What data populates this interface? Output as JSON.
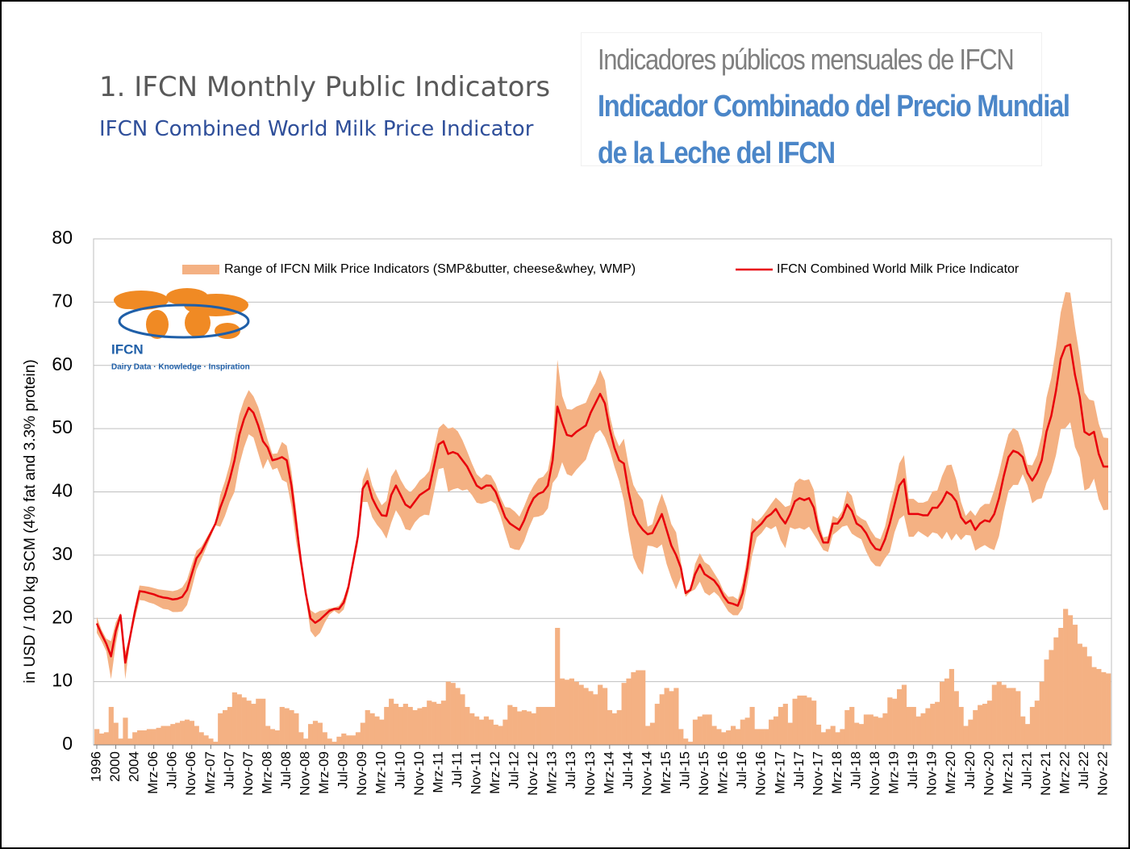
{
  "header": {
    "title": "1. IFCN Monthly Public Indicators",
    "subtitle": "IFCN Combined World Milk Price Indicator"
  },
  "spanish_header": {
    "title": "Indicadores públicos mensuales de IFCN",
    "subtitle_line1": "Indicador Combinado del Precio Mundial",
    "subtitle_line2": "de la Leche del IFCN"
  },
  "logo": {
    "name": "IFCN",
    "tagline": "Dairy Data · Knowledge · Inspiration"
  },
  "chart_data": {
    "type": "band_line",
    "y_label": "in USD / 100 kg SCM (4% fat and 3.3% protein)",
    "ylim": [
      0,
      80
    ],
    "yticks": [
      0,
      10,
      20,
      30,
      40,
      50,
      60,
      70,
      80
    ],
    "grid": true,
    "legend": "top",
    "categories": [
      "1996",
      null,
      null,
      null,
      "2000",
      null,
      null,
      null,
      "2004",
      null,
      null,
      null,
      "Mrz-06",
      null,
      null,
      null,
      "Jul-06",
      null,
      null,
      null,
      "Nov-06",
      null,
      null,
      null,
      "Mrz-07",
      null,
      null,
      null,
      "Jul-07",
      null,
      null,
      null,
      "Nov-07",
      null,
      null,
      null,
      "Mrz-08",
      null,
      null,
      null,
      "Jul-08",
      null,
      null,
      null,
      "Nov-08",
      null,
      null,
      null,
      "Mrz-09",
      null,
      null,
      null,
      "Jul-09",
      null,
      null,
      null,
      "Nov-09",
      null,
      null,
      null,
      "Mrz-10",
      null,
      null,
      null,
      "Jul-10",
      null,
      null,
      null,
      "Nov-10",
      null,
      null,
      null,
      "Mrz-11",
      null,
      null,
      null,
      "Jul-11",
      null,
      null,
      null,
      "Nov-11",
      null,
      null,
      null,
      "Mrz-12",
      null,
      null,
      null,
      "Jul-12",
      null,
      null,
      null,
      "Nov-12",
      null,
      null,
      null,
      "Mrz-13",
      null,
      null,
      null,
      "Jul-13",
      null,
      null,
      null,
      "Nov-13",
      null,
      null,
      null,
      "Mrz-14",
      null,
      null,
      null,
      "Jul-14",
      null,
      null,
      null,
      "Nov-14",
      null,
      null,
      null,
      "Mrz-15",
      null,
      null,
      null,
      "Jul-15",
      null,
      null,
      null,
      "Nov-15",
      null,
      null,
      null,
      "Mrz-16",
      null,
      null,
      null,
      "Jul-16",
      null,
      null,
      null,
      "Nov-16",
      null,
      null,
      null,
      "Mrz-17",
      null,
      null,
      null,
      "Jul-17",
      null,
      null,
      null,
      "Nov-17",
      null,
      null,
      null,
      "Mrz-18",
      null,
      null,
      null,
      "Jul-18",
      null,
      null,
      null,
      "Nov-18",
      null,
      null,
      null,
      "Mrz-19",
      null,
      null,
      null,
      "Jul-19",
      null,
      null,
      null,
      "Nov-19",
      null,
      null,
      null,
      "Mrz-20",
      null,
      null,
      null,
      "Jul-20",
      null,
      null,
      null,
      "Nov-20",
      null,
      null,
      null,
      "Mrz-21",
      null,
      null,
      null,
      "Jul-21",
      null,
      null,
      null,
      "Nov-21",
      null,
      null,
      null,
      "Mrz-22",
      null,
      null,
      null,
      "Jul-22",
      null,
      null,
      null,
      "Nov-22",
      null
    ],
    "series": [
      {
        "name": "Range of IFCN Milk Price Indicators (SMP&butter, cheese&whey, WMP)",
        "color": "#f4b183",
        "low": [
          17.7,
          16.4,
          14.8,
          10.4,
          15.9,
          19.9,
          10.4,
          16.4,
          19.8,
          22.9,
          22.8,
          22.5,
          22.3,
          21.9,
          21.5,
          21.4,
          21,
          21,
          21.1,
          22.1,
          24.7,
          27.7,
          29.3,
          31.1,
          32.9,
          34.7,
          34.5,
          36.2,
          38.4,
          40,
          44.2,
          47,
          49.1,
          48.6,
          46.1,
          43.6,
          45.2,
          43.5,
          43.8,
          41.9,
          41.5,
          37.7,
          32,
          27.8,
          23.4,
          18,
          17,
          17.7,
          19.3,
          20.6,
          21.2,
          20.7,
          21.4,
          24.1,
          28.1,
          31.8,
          38.4,
          38.4,
          36,
          34.8,
          33.9,
          32.6,
          35.1,
          37.1,
          35.9,
          34.1,
          33.9,
          35.2,
          36,
          36.4,
          36.3,
          39.9,
          43.6,
          43.8,
          40,
          40.4,
          40.6,
          40.2,
          40.4,
          39.5,
          38.3,
          38.1,
          38.3,
          38.6,
          38.1,
          36.2,
          33.6,
          31.2,
          30.9,
          30.8,
          32.2,
          34.3,
          36,
          36.1,
          36.4,
          37.4,
          41.4,
          42.4,
          44.7,
          42.8,
          42.5,
          43.5,
          44.3,
          45.1,
          47.4,
          49.2,
          49.8,
          48.6,
          46.7,
          44,
          41.7,
          38.6,
          33.7,
          29.6,
          27.9,
          26.9,
          31.5,
          31.4,
          31.1,
          31.7,
          28.6,
          26.4,
          24.6,
          26.5,
          23.4,
          24.2,
          24.6,
          25.8,
          24.1,
          23.6,
          24.2,
          23.5,
          22.3,
          21.1,
          20.5,
          20.5,
          21.6,
          25.4,
          29.9,
          32.8,
          33.5,
          34.5,
          34.1,
          34.6,
          32.4,
          31.1,
          34.4,
          34.1,
          34.3,
          34,
          34.5,
          33.3,
          32.1,
          30.8,
          30.5,
          33.2,
          33.8,
          34.5,
          34.7,
          33.4,
          32.9,
          32.5,
          30.6,
          29.1,
          28.3,
          28.2,
          29.5,
          30.5,
          33.6,
          35.7,
          36.3,
          32.9,
          32.9,
          33.8,
          33.3,
          32.8,
          33.6,
          33.4,
          32.5,
          33.7,
          32.3,
          33.4,
          32.4,
          33.2,
          33.1,
          30.7,
          31.2,
          31.6,
          31.1,
          30.8,
          33,
          36.8,
          40.1,
          41.1,
          41.1,
          42.8,
          41,
          38.2,
          38.8,
          39,
          41.4,
          43,
          45.8,
          49.9,
          50.1,
          51,
          47.1,
          45.4,
          40.2,
          40.6,
          42.1,
          38.8,
          37.1,
          37.2
        ],
        "values": [
          2.5,
          1.8,
          2,
          6,
          3.5,
          1,
          4.3,
          1,
          2,
          2.3,
          2.3,
          2.5,
          2.5,
          2.7,
          3,
          3,
          3.3,
          3.5,
          3.8,
          4,
          3.8,
          3,
          2,
          1.5,
          1,
          0.5,
          5,
          5.5,
          6,
          8.3,
          8,
          7.5,
          7,
          6.5,
          7.3,
          7.3,
          3,
          2.5,
          2.3,
          6,
          5.8,
          5.5,
          5,
          2,
          1,
          3.3,
          3.8,
          3.5,
          2,
          1,
          0.5,
          1.3,
          1.8,
          1.5,
          1.5,
          2,
          3.5,
          5.5,
          5,
          4.5,
          4,
          6,
          7.3,
          6.5,
          6,
          6.5,
          6,
          5.5,
          5.8,
          6,
          7,
          6.8,
          6.5,
          7,
          10,
          9.8,
          9,
          8,
          6,
          5,
          4.5,
          4,
          4.5,
          4,
          3.2,
          3,
          4,
          6.3,
          6,
          5.3,
          5.5,
          5.3,
          5,
          6,
          6,
          6,
          6,
          18.5,
          10.5,
          10.3,
          10.5,
          10,
          9.5,
          9,
          8.5,
          8,
          9.5,
          9,
          5.5,
          5,
          5.5,
          9.8,
          10.5,
          11.5,
          11.8,
          11.8,
          3,
          3.5,
          6.5,
          8,
          9,
          8.5,
          9,
          2.5,
          1,
          0.5,
          4,
          4.5,
          4.8,
          4.8,
          3,
          2.5,
          2,
          2.3,
          3,
          2.5,
          4,
          4.3,
          6,
          2.5,
          2.5,
          2.5,
          4,
          4.5,
          6,
          6.5,
          3.5,
          7.3,
          7.8,
          7.8,
          7.5,
          7,
          3.2,
          2,
          2.5,
          3,
          2,
          2.5,
          5.5,
          6,
          3.5,
          3.3,
          4.8,
          4.8,
          4.5,
          4.3,
          5,
          7.5,
          7.3,
          8.8,
          9.5,
          6,
          6,
          4.5,
          5,
          5.8,
          6.5,
          6.8,
          10,
          10.5,
          12,
          8.5,
          6,
          3,
          4,
          5.5,
          6.3,
          6.5,
          7,
          9.5,
          10,
          9.5,
          9,
          9,
          8.5,
          4.5,
          3.3,
          6,
          7,
          10,
          13.5,
          15,
          17,
          18.5,
          21.5,
          20.5,
          19,
          16,
          15.5,
          14,
          12.3,
          12,
          11.5,
          11.3
        ]
      },
      {
        "name": "IFCN Combined World Milk Price Indicator",
        "color": "#e8000b",
        "values": [
          19.2,
          17.5,
          16,
          14,
          18,
          20.5,
          13,
          17,
          21,
          24.3,
          24.2,
          24,
          23.8,
          23.5,
          23.3,
          23.2,
          23,
          23.1,
          23.4,
          24.5,
          27,
          29.5,
          30.5,
          32,
          33.5,
          35,
          37.5,
          39.5,
          42,
          45,
          49,
          51.5,
          53.3,
          52.5,
          50.5,
          48,
          47,
          45,
          45.2,
          45.5,
          45,
          41,
          35,
          29,
          24,
          20,
          19.3,
          19.8,
          20.5,
          21.2,
          21.5,
          21.5,
          22.5,
          25,
          29,
          33,
          40.5,
          41.7,
          39,
          37.5,
          36.3,
          36.2,
          39.5,
          41,
          39.5,
          38,
          37.5,
          38.5,
          39.5,
          40,
          40.5,
          44,
          47.5,
          48,
          46,
          46.3,
          46,
          45,
          44,
          42.5,
          41,
          40.5,
          41,
          41,
          40,
          38,
          36,
          35,
          34.5,
          34,
          35.5,
          37.5,
          39,
          39.7,
          40,
          41,
          45,
          53.5,
          51,
          49,
          48.8,
          49.5,
          50,
          50.5,
          52.5,
          54,
          55.5,
          54,
          50,
          47,
          45,
          44.5,
          40,
          36.5,
          35,
          34,
          33.3,
          33.5,
          35,
          36.5,
          34,
          31.5,
          30,
          28,
          24,
          24.5,
          27,
          28.5,
          27,
          26.5,
          26,
          25,
          23.5,
          22.5,
          22.3,
          22,
          24,
          28,
          33.5,
          34.3,
          35,
          36,
          36.5,
          37.3,
          36,
          35,
          36.5,
          38.5,
          39,
          38.7,
          39,
          37.5,
          34,
          32,
          32,
          35,
          35,
          36,
          38,
          37,
          35,
          34.5,
          33.5,
          32,
          31,
          30.8,
          32.5,
          35,
          38,
          41,
          42,
          36.5,
          36.5,
          36.5,
          36.3,
          36.3,
          37.5,
          37.5,
          38.5,
          40,
          39.5,
          38.5,
          36,
          35,
          35.5,
          34,
          35,
          35.5,
          35.3,
          36.5,
          39,
          42.5,
          45.5,
          46.5,
          46.2,
          45.5,
          43,
          41.8,
          43,
          45,
          49.5,
          52,
          56,
          61,
          63,
          63.3,
          58.5,
          55,
          49.5,
          49,
          49.5,
          46,
          44,
          44
        ]
      }
    ]
  }
}
